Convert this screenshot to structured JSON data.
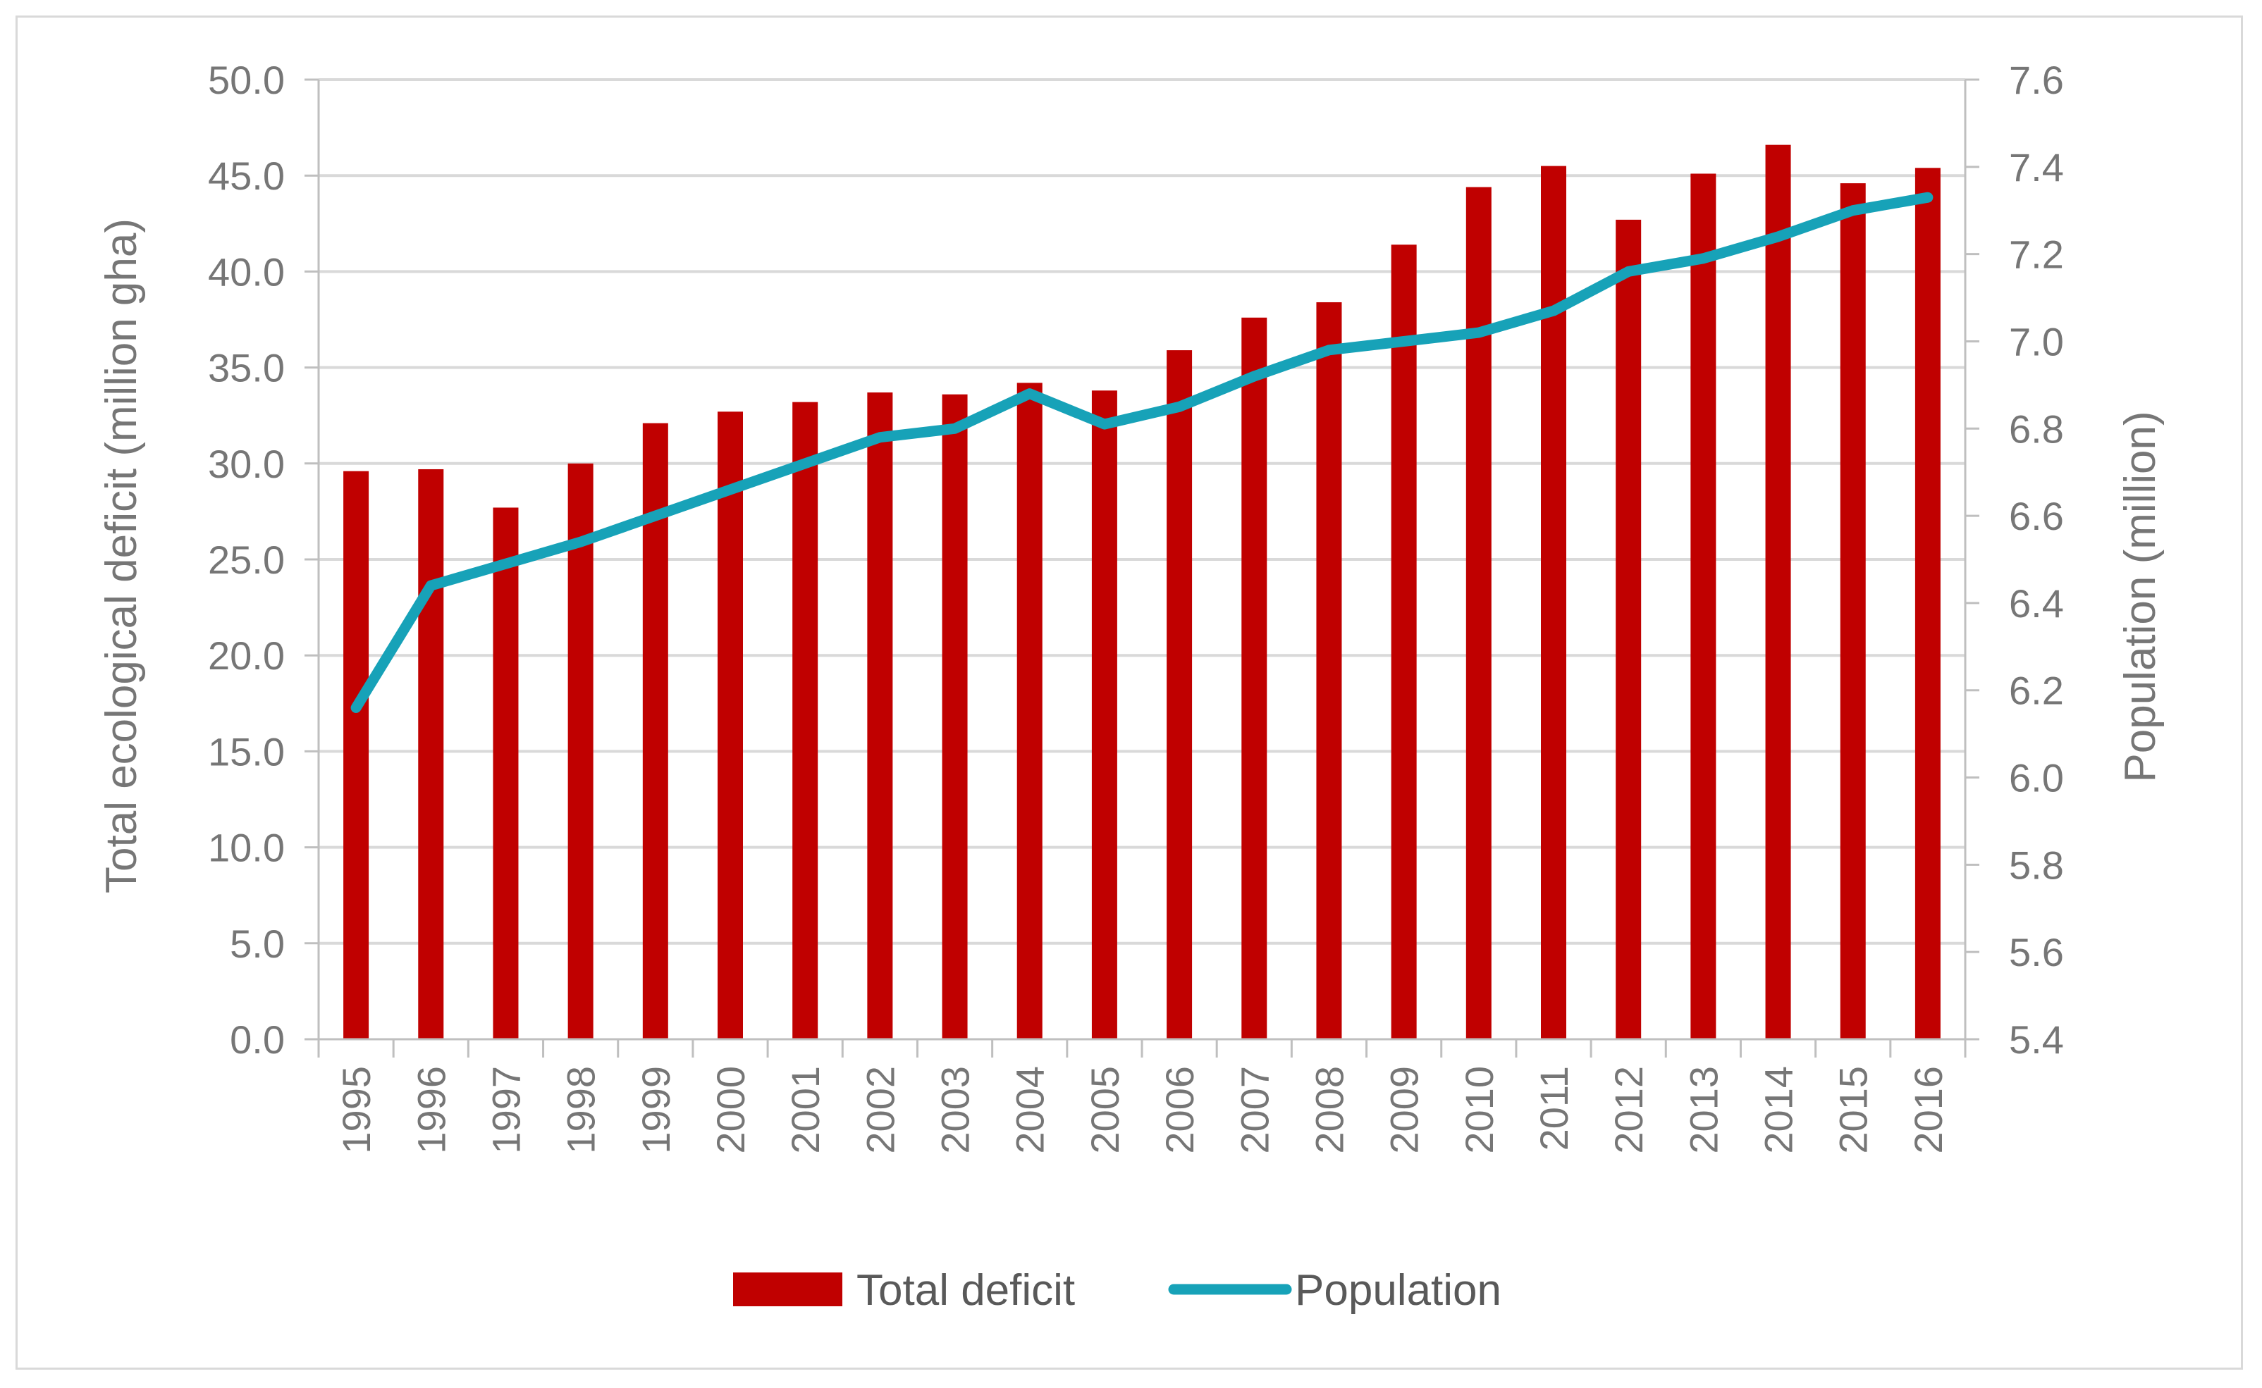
{
  "chart_data": {
    "type": "bar+line",
    "title": "",
    "categories": [
      "1995",
      "1996",
      "1997",
      "1998",
      "1999",
      "2000",
      "2001",
      "2002",
      "2003",
      "2004",
      "2005",
      "2006",
      "2007",
      "2008",
      "2009",
      "2010",
      "2011",
      "2012",
      "2013",
      "2014",
      "2015",
      "2016"
    ],
    "series": [
      {
        "name": "Total deficit",
        "kind": "bar",
        "axis": "left",
        "color": "#c00000",
        "values": [
          29.6,
          29.7,
          27.7,
          30.0,
          32.1,
          32.7,
          33.2,
          33.7,
          33.6,
          34.2,
          33.8,
          35.9,
          37.6,
          38.4,
          41.4,
          44.4,
          45.5,
          42.7,
          45.1,
          46.6,
          44.6,
          45.4
        ]
      },
      {
        "name": "Population",
        "kind": "line",
        "axis": "right",
        "color": "#17a2b8",
        "values": [
          6.16,
          6.44,
          6.49,
          6.54,
          6.6,
          6.66,
          6.72,
          6.78,
          6.8,
          6.88,
          6.81,
          6.85,
          6.92,
          6.98,
          7.0,
          7.02,
          7.07,
          7.16,
          7.19,
          7.24,
          7.3,
          7.33
        ]
      }
    ],
    "ylabel_left": "Total ecological deficit (million gha)",
    "ylabel_right": "Population (million)",
    "ylim_left": [
      0,
      50
    ],
    "ylim_right": [
      5.4,
      7.6
    ],
    "yticks_left": [
      "0.0",
      "5.0",
      "10.0",
      "15.0",
      "20.0",
      "25.0",
      "30.0",
      "35.0",
      "40.0",
      "45.0",
      "50.0"
    ],
    "yticks_right": [
      "5.4",
      "5.6",
      "5.8",
      "6.0",
      "6.2",
      "6.4",
      "6.6",
      "6.8",
      "7.0",
      "7.2",
      "7.4",
      "7.6"
    ],
    "grid": true,
    "legend_position": "bottom-center",
    "legend": [
      "Total deficit",
      "Population"
    ]
  }
}
